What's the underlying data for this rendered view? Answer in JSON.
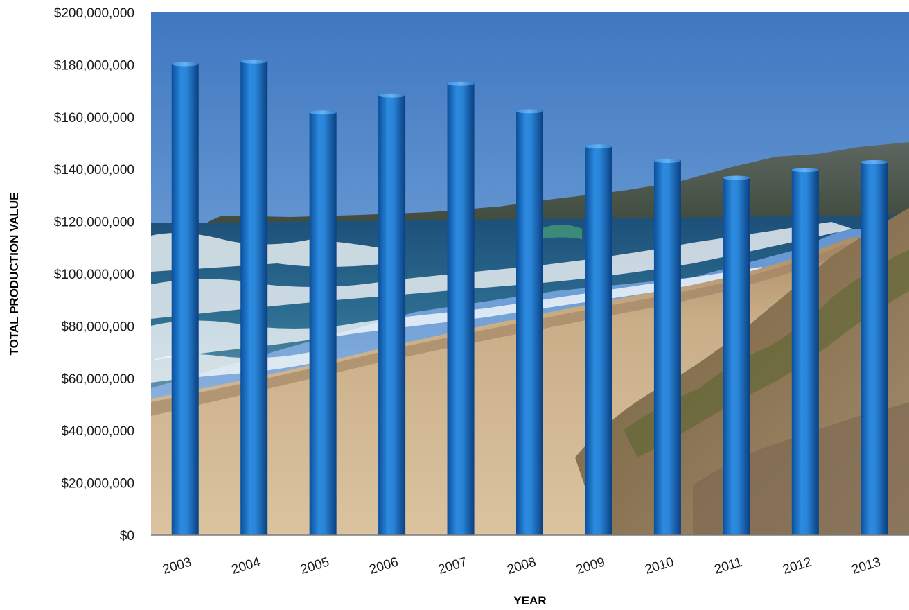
{
  "chart_data": {
    "type": "bar",
    "title": "",
    "xlabel": "YEAR",
    "ylabel": "TOTAL PRODUCTION VALUE",
    "categories": [
      "2003",
      "2004",
      "2005",
      "2006",
      "2007",
      "2008",
      "2009",
      "2010",
      "2011",
      "2012",
      "2013"
    ],
    "values": [
      180500000,
      181500000,
      162000000,
      168500000,
      173000000,
      162500000,
      149000000,
      143500000,
      137000000,
      140000000,
      143000000
    ],
    "ylim": [
      0,
      200000000
    ],
    "y_ticks": [
      "$0",
      "$20,000,000",
      "$40,000,000",
      "$60,000,000",
      "$80,000,000",
      "$100,000,000",
      "$120,000,000",
      "$140,000,000",
      "$160,000,000",
      "$180,000,000",
      "$200,000,000"
    ],
    "grid": false,
    "legend": "none",
    "bar_color": "#1f78c8",
    "background": "photo of a sandy beach with ocean waves, blue sky and coastal hills"
  }
}
